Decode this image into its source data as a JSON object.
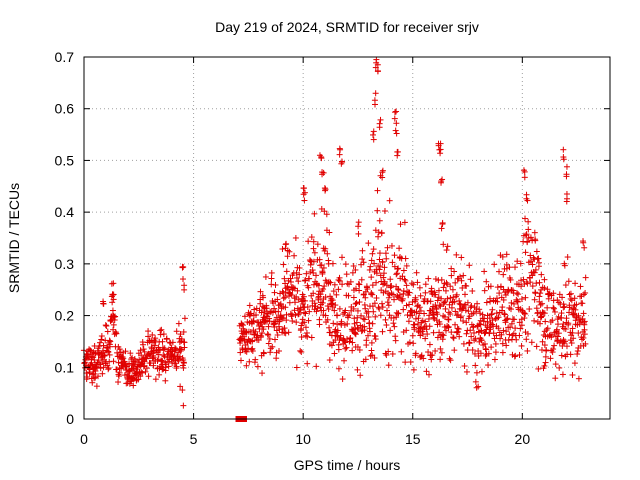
{
  "chart_data": {
    "type": "scatter",
    "title": "Day 219 of 2024, SRMTID for receiver srjv",
    "xlabel": "GPS time / hours",
    "ylabel": "SRMTID / TECUs",
    "xlim": [
      0,
      24
    ],
    "ylim": [
      0,
      0.7
    ],
    "xticks": [
      0,
      5,
      10,
      15,
      20
    ],
    "yticks": [
      0,
      0.1,
      0.2,
      0.3,
      0.4,
      0.5,
      0.6,
      0.7
    ],
    "xtick_labels": [
      "0",
      "5",
      "10",
      "15",
      "20"
    ],
    "ytick_labels": [
      "0",
      "0.1",
      "0.2",
      "0.3",
      "0.4",
      "0.5",
      "0.6",
      "0.7"
    ],
    "grid": true,
    "marker": "+",
    "color": "#e00000",
    "zero_value_markers": [
      {
        "x": 7.05,
        "y": 0
      },
      {
        "x": 7.3,
        "y": 0
      }
    ],
    "profile_hours": [
      0,
      0.5,
      1.0,
      1.3,
      1.5,
      2.0,
      2.5,
      3.0,
      3.5,
      4.0,
      4.6,
      7.1,
      8.0,
      8.5,
      9.0,
      9.5,
      10.0,
      10.5,
      11.0,
      11.5,
      12.0,
      12.5,
      13.0,
      13.5,
      14.0,
      14.5,
      15.0,
      15.5,
      16.0,
      16.5,
      17.0,
      17.5,
      18.0,
      18.5,
      19.0,
      19.5,
      20.0,
      20.5,
      21.0,
      21.5,
      22.0,
      22.5,
      22.9
    ],
    "profile_median": [
      0.11,
      0.11,
      0.12,
      0.2,
      0.12,
      0.09,
      0.1,
      0.13,
      0.12,
      0.12,
      0.13,
      0.15,
      0.18,
      0.2,
      0.2,
      0.25,
      0.2,
      0.27,
      0.25,
      0.18,
      0.2,
      0.22,
      0.2,
      0.3,
      0.25,
      0.25,
      0.2,
      0.18,
      0.2,
      0.22,
      0.22,
      0.2,
      0.15,
      0.18,
      0.22,
      0.2,
      0.25,
      0.27,
      0.2,
      0.17,
      0.2,
      0.18,
      0.2
    ],
    "profile_spread": [
      0.03,
      0.03,
      0.04,
      0.04,
      0.03,
      0.02,
      0.02,
      0.03,
      0.03,
      0.03,
      0.05,
      0.02,
      0.05,
      0.06,
      0.06,
      0.07,
      0.06,
      0.09,
      0.09,
      0.07,
      0.07,
      0.08,
      0.08,
      0.12,
      0.1,
      0.08,
      0.07,
      0.06,
      0.07,
      0.07,
      0.07,
      0.07,
      0.06,
      0.06,
      0.07,
      0.07,
      0.08,
      0.08,
      0.07,
      0.06,
      0.08,
      0.06,
      0.07
    ],
    "outlier_points": [
      {
        "x": 0.9,
        "y": 0.22
      },
      {
        "x": 1.3,
        "y": 0.25
      },
      {
        "x": 1.35,
        "y": 0.24
      },
      {
        "x": 4.5,
        "y": 0.3
      },
      {
        "x": 4.55,
        "y": 0.26
      },
      {
        "x": 9.2,
        "y": 0.33
      },
      {
        "x": 10.0,
        "y": 0.45
      },
      {
        "x": 10.05,
        "y": 0.43
      },
      {
        "x": 10.8,
        "y": 0.5
      },
      {
        "x": 10.9,
        "y": 0.48
      },
      {
        "x": 11.0,
        "y": 0.44
      },
      {
        "x": 11.7,
        "y": 0.52
      },
      {
        "x": 11.75,
        "y": 0.5
      },
      {
        "x": 12.5,
        "y": 0.37
      },
      {
        "x": 13.2,
        "y": 0.55
      },
      {
        "x": 13.3,
        "y": 0.62
      },
      {
        "x": 13.35,
        "y": 0.69
      },
      {
        "x": 13.4,
        "y": 0.68
      },
      {
        "x": 13.5,
        "y": 0.57
      },
      {
        "x": 13.6,
        "y": 0.47
      },
      {
        "x": 14.2,
        "y": 0.59
      },
      {
        "x": 14.25,
        "y": 0.56
      },
      {
        "x": 14.3,
        "y": 0.51
      },
      {
        "x": 16.2,
        "y": 0.53
      },
      {
        "x": 16.25,
        "y": 0.52
      },
      {
        "x": 16.3,
        "y": 0.46
      },
      {
        "x": 16.35,
        "y": 0.38
      },
      {
        "x": 20.1,
        "y": 0.47
      },
      {
        "x": 20.2,
        "y": 0.43
      },
      {
        "x": 20.6,
        "y": 0.35
      },
      {
        "x": 21.9,
        "y": 0.51
      },
      {
        "x": 22.0,
        "y": 0.48
      },
      {
        "x": 22.05,
        "y": 0.43
      },
      {
        "x": 22.8,
        "y": 0.34
      }
    ]
  }
}
